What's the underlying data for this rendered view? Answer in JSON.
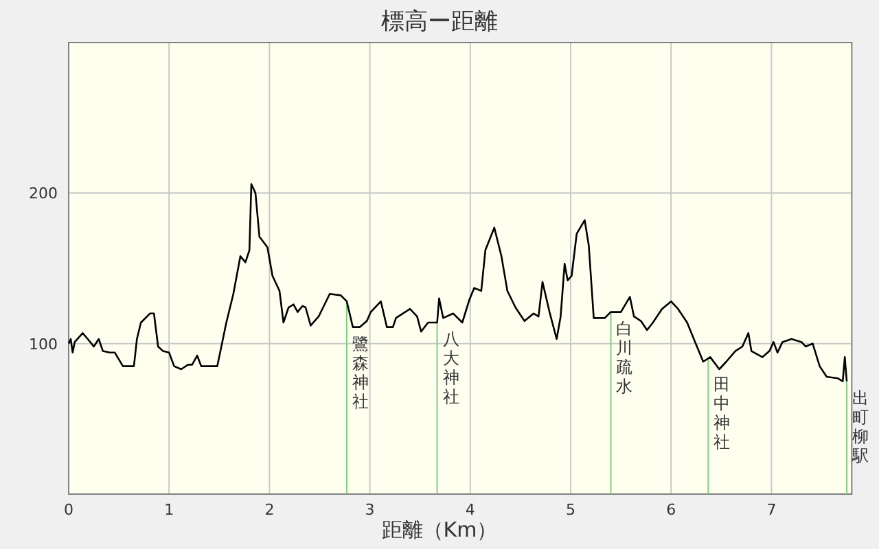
{
  "chart_data": {
    "type": "line",
    "title": "標高ー距離",
    "xlabel": "距離（Km）",
    "xlim": [
      0,
      7.8
    ],
    "ylim": [
      0,
      300
    ],
    "xticks": [
      0,
      1,
      2,
      3,
      4,
      5,
      6,
      7
    ],
    "yticks": [
      100,
      200
    ],
    "grid": true,
    "series": [
      {
        "color": "#000000",
        "x": [
          0,
          0.02,
          0.04,
          0.06,
          0.14,
          0.19,
          0.25,
          0.3,
          0.34,
          0.41,
          0.46,
          0.54,
          0.59,
          0.65,
          0.68,
          0.72,
          0.81,
          0.85,
          0.89,
          0.94,
          1.0,
          1.05,
          1.12,
          1.19,
          1.23,
          1.28,
          1.32,
          1.39,
          1.48,
          1.57,
          1.64,
          1.71,
          1.76,
          1.8,
          1.82,
          1.86,
          1.9,
          1.98,
          2.03,
          2.1,
          2.14,
          2.19,
          2.24,
          2.28,
          2.33,
          2.36,
          2.41,
          2.49,
          2.6,
          2.71,
          2.77,
          2.83,
          2.9,
          2.97,
          3.01,
          3.11,
          3.17,
          3.23,
          3.26,
          3.4,
          3.47,
          3.51,
          3.58,
          3.67,
          3.69,
          3.73,
          3.83,
          3.92,
          3.99,
          4.04,
          4.11,
          4.15,
          4.24,
          4.31,
          4.37,
          4.45,
          4.54,
          4.63,
          4.68,
          4.72,
          4.79,
          4.86,
          4.9,
          4.94,
          4.97,
          5.01,
          5.06,
          5.14,
          5.18,
          5.23,
          5.34,
          5.4,
          5.5,
          5.59,
          5.63,
          5.7,
          5.76,
          5.82,
          5.91,
          6.0,
          6.07,
          6.16,
          6.24,
          6.32,
          6.39,
          6.48,
          6.55,
          6.64,
          6.71,
          6.77,
          6.8,
          6.91,
          6.98,
          7.02,
          7.06,
          7.11,
          7.2,
          7.3,
          7.34,
          7.41,
          7.48,
          7.55,
          7.66,
          7.71,
          7.73,
          7.75
        ],
        "values": [
          100,
          103,
          94,
          101,
          107,
          103,
          98,
          103,
          95,
          94,
          94,
          85,
          85,
          85,
          103,
          114,
          120,
          120,
          98,
          95,
          94,
          85,
          83,
          86,
          86,
          92,
          85,
          85,
          85,
          114,
          133,
          158,
          154,
          162,
          206,
          200,
          171,
          164,
          145,
          135,
          114,
          124,
          126,
          121,
          125,
          124,
          112,
          118,
          133,
          132,
          128,
          111,
          111,
          115,
          121,
          128,
          111,
          111,
          117,
          123,
          118,
          108,
          114,
          114,
          130,
          117,
          120,
          114,
          129,
          137,
          135,
          162,
          177,
          158,
          135,
          124,
          115,
          120,
          118,
          141,
          121,
          103,
          118,
          153,
          142,
          145,
          173,
          182,
          165,
          117,
          117,
          121,
          121,
          131,
          118,
          115,
          109,
          114,
          123,
          128,
          123,
          114,
          101,
          88,
          91,
          83,
          88,
          95,
          98,
          107,
          95,
          91,
          95,
          101,
          94,
          101,
          103,
          101,
          98,
          100,
          85,
          78,
          77,
          75,
          91,
          75
        ]
      }
    ],
    "ref_lines": [
      {
        "axis": "x",
        "value": 2.77,
        "label": "鷺森神社",
        "color": "#80d080"
      },
      {
        "axis": "x",
        "value": 3.67,
        "label": "八大神社",
        "color": "#80d080"
      },
      {
        "axis": "x",
        "value": 5.4,
        "label": "白川疏水",
        "color": "#80d080"
      },
      {
        "axis": "x",
        "value": 6.37,
        "label": "田中神社",
        "color": "#80d080"
      },
      {
        "axis": "x",
        "value": 7.75,
        "label": "出町柳駅",
        "color": "#80d080"
      }
    ]
  }
}
